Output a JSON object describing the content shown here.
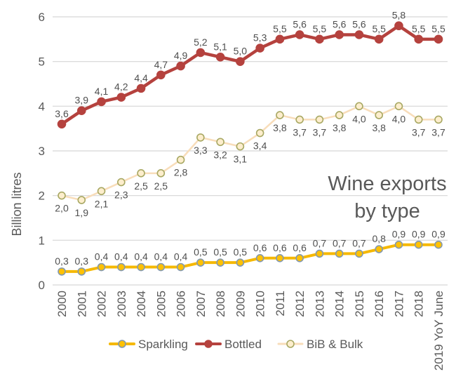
{
  "chart_data": {
    "type": "line",
    "title": "Wine exports by type",
    "title_lines": [
      "Wine exports",
      "by type"
    ],
    "ylabel": "Billion litres",
    "xlabel": "",
    "ylim": [
      0,
      6
    ],
    "yticks": [
      0,
      1,
      2,
      3,
      4,
      5,
      6
    ],
    "grid": true,
    "legend_position": "bottom",
    "categories": [
      "2000",
      "2001",
      "2002",
      "2003",
      "2004",
      "2005",
      "2006",
      "2007",
      "2008",
      "2009",
      "2010",
      "2011",
      "2012",
      "2013",
      "2014",
      "2015",
      "2016",
      "2017",
      "2018",
      "2019 YoY June"
    ],
    "series": [
      {
        "name": "Sparkling",
        "values": [
          0.3,
          0.3,
          0.4,
          0.4,
          0.4,
          0.4,
          0.4,
          0.5,
          0.5,
          0.5,
          0.6,
          0.6,
          0.6,
          0.7,
          0.7,
          0.7,
          0.8,
          0.9,
          0.9,
          0.9
        ],
        "labels": [
          "0,3",
          "0,3",
          "0,4",
          "0,4",
          "0,4",
          "0,4",
          "0,4",
          "0,5",
          "0,5",
          "0,5",
          "0,6",
          "0,6",
          "0,6",
          "0,7",
          "0,7",
          "0,7",
          "0,8",
          "0,9",
          "0,9",
          "0,9"
        ],
        "color": "#f5b800",
        "marker_fill": "#ffc103",
        "marker_stroke": "#8499ad",
        "label_position": "above",
        "line_width": 4
      },
      {
        "name": "Bottled",
        "values": [
          3.6,
          3.9,
          4.1,
          4.2,
          4.4,
          4.7,
          4.9,
          5.2,
          5.1,
          5.0,
          5.3,
          5.5,
          5.6,
          5.5,
          5.6,
          5.6,
          5.5,
          5.8,
          5.5,
          5.5
        ],
        "labels": [
          "3,6",
          "3,9",
          "4,1",
          "4,2",
          "4,4",
          "4,7",
          "4,9",
          "5,2",
          "5,1",
          "5,0",
          "5,3",
          "5,5",
          "5,6",
          "5,5",
          "5,6",
          "5,6",
          "5,5",
          "5,8",
          "5,5",
          "5,5"
        ],
        "color": "#b5423e",
        "marker_fill": "#b5423e",
        "marker_stroke": "#b5423e",
        "label_position": "above",
        "line_width": 4.5
      },
      {
        "name": "BiB & Bulk",
        "values": [
          2.0,
          1.9,
          2.1,
          2.3,
          2.5,
          2.5,
          2.8,
          3.3,
          3.2,
          3.1,
          3.4,
          3.8,
          3.7,
          3.7,
          3.8,
          4.0,
          3.8,
          4.0,
          3.7,
          3.7
        ],
        "labels": [
          "2,0",
          "1,9",
          "2,1",
          "2,3",
          "2,5",
          "2,5",
          "2,8",
          "3,3",
          "3,2",
          "3,1",
          "3,4",
          "3,8",
          "3,7",
          "3,7",
          "3,8",
          "4,0",
          "3,8",
          "4,0",
          "3,7",
          "3,7"
        ],
        "color": "#f8ddba",
        "marker_fill": "#fdeecd",
        "marker_stroke": "#a8a863",
        "label_position": "below",
        "line_width": 2.5
      }
    ],
    "colors": {
      "grid": "#d6d6d6",
      "axis_text": "#595959",
      "title_text": "#595959",
      "data_label_text": "#4f4f4f",
      "legend_text": "#595959",
      "background": "#ffffff"
    }
  }
}
